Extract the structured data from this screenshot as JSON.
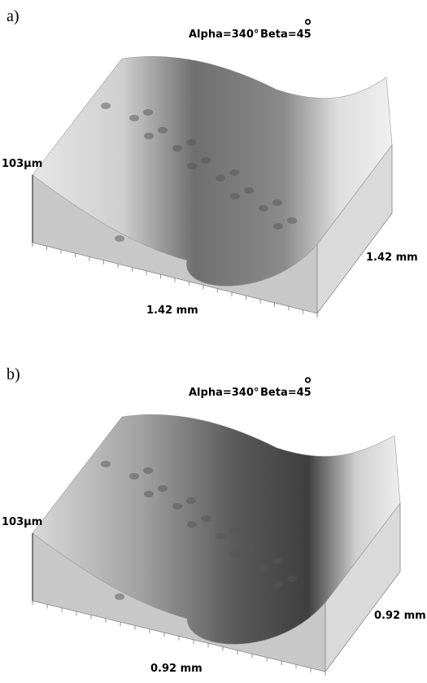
{
  "panels": [
    {
      "label": "a)",
      "alpha": "Alpha=340°",
      "beta": "Beta=45",
      "degree": "°",
      "height": "103µm",
      "x_length": "1.42 mm",
      "y_length": "1.42 mm"
    },
    {
      "label": "b)",
      "alpha": "Alpha=340°",
      "beta": "Beta=45",
      "degree": "°",
      "height": "103µm",
      "x_length": "0.92 mm",
      "y_length": "0.92 mm"
    }
  ]
}
